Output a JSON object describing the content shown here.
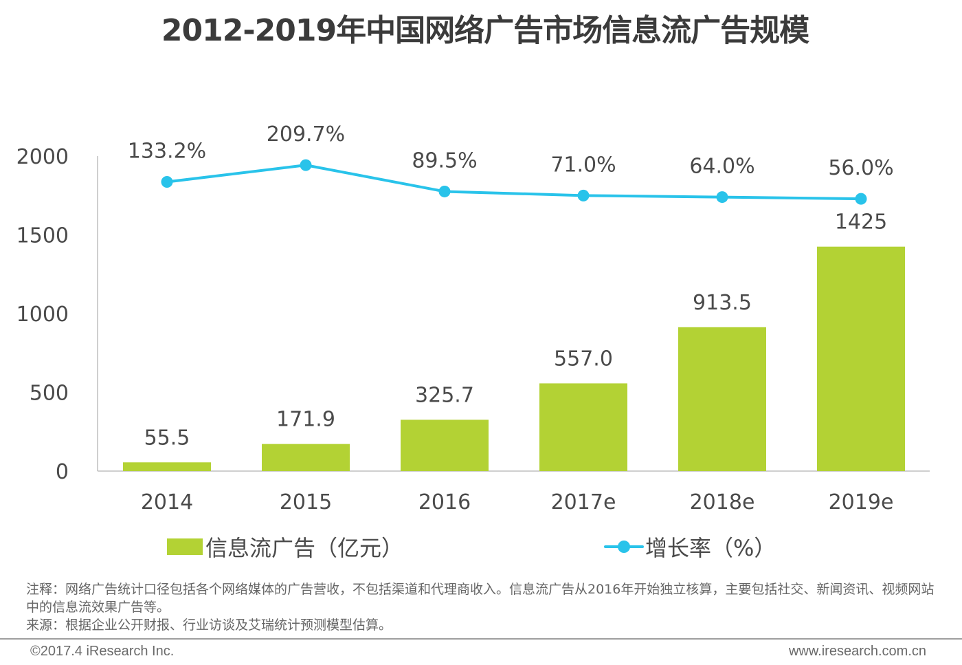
{
  "title": "2012-2019年中国网络广告市场信息流广告规模",
  "chart_data": {
    "type": "bar",
    "title": "2012-2019年中国网络广告市场信息流广告规模",
    "categories": [
      "2014",
      "2015",
      "2016",
      "2017e",
      "2018e",
      "2019e"
    ],
    "series": [
      {
        "name": "信息流广告（亿元）",
        "type": "bar",
        "axis": "left",
        "color": "#b3d234",
        "values": [
          55.5,
          171.9,
          325.7,
          557.0,
          913.5,
          1425
        ],
        "labels": [
          "55.5",
          "171.9",
          "325.7",
          "557.0",
          "913.5",
          "1425"
        ]
      },
      {
        "name": "增长率（%）",
        "type": "line",
        "axis": "right-hidden",
        "color": "#29c3ea",
        "values": [
          133.2,
          209.7,
          89.5,
          71.0,
          64.0,
          56.0
        ],
        "labels": [
          "133.2%",
          "209.7%",
          "89.5%",
          "71.0%",
          "64.0%",
          "56.0%"
        ]
      }
    ],
    "yaxis": {
      "ylim": [
        0,
        2000
      ],
      "ticks": [
        0,
        500,
        1000,
        1500,
        2000
      ],
      "tick_labels": [
        "0",
        "500",
        "1000",
        "1500",
        "2000"
      ]
    },
    "xlabel": "",
    "ylabel": "",
    "grid": false,
    "legend_position": "bottom"
  },
  "legend": {
    "bar_label": "信息流广告（亿元）",
    "line_label": "增长率（%）"
  },
  "notes": {
    "line1": "注释：网络广告统计口径包括各个网络媒体的广告营收，不包括渠道和代理商收入。信息流广告从2016年开始独立核算，主要包括社交、新闻资讯、视频网站中的信息流效果广告等。",
    "line2": "来源：根据企业公开财报、行业访谈及艾瑞统计预测模型估算。"
  },
  "footer": {
    "copyright": "©2017.4 iResearch Inc.",
    "website": "www.iresearch.com.cn"
  },
  "colors": {
    "bar": "#b3d234",
    "line": "#29c3ea",
    "axis": "#bfbfbf",
    "text": "#4a4a4a"
  }
}
